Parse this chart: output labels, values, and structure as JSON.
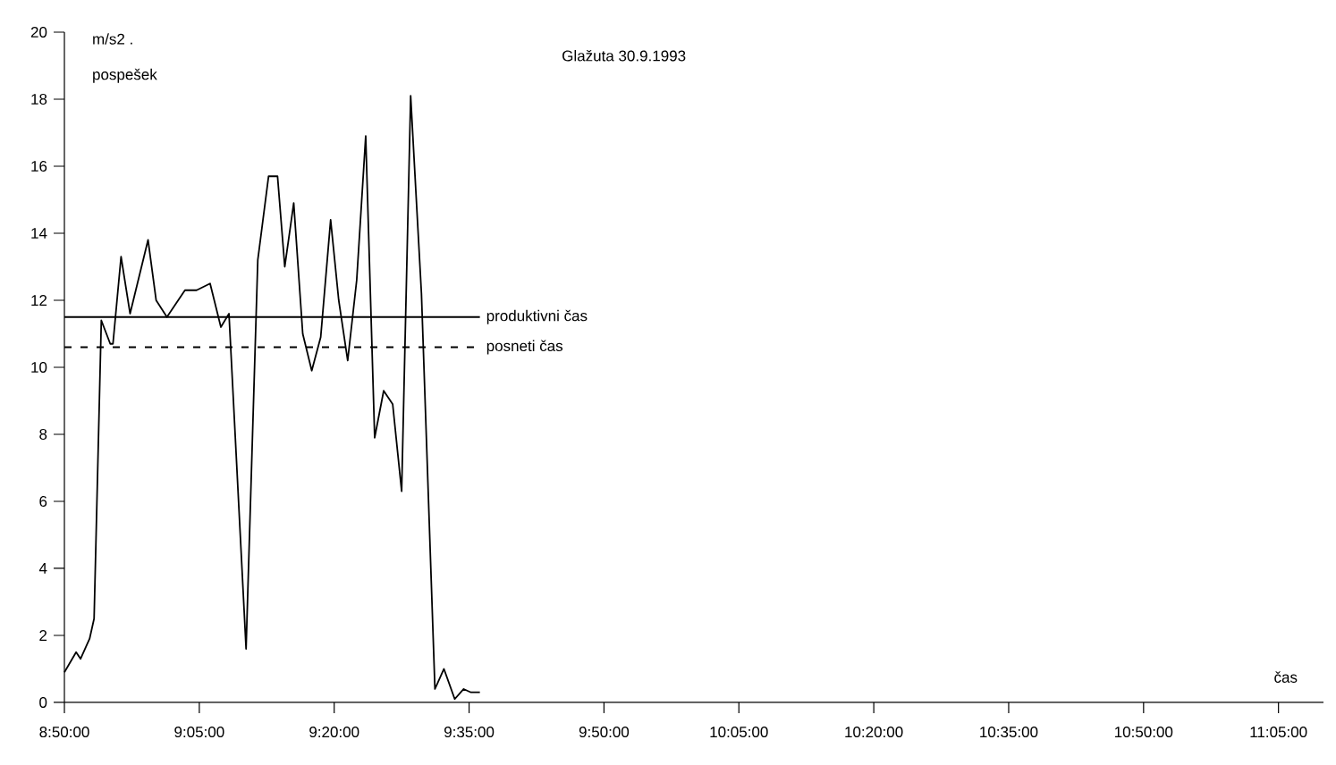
{
  "chart_data": {
    "type": "line",
    "title": "Glažuta 30.9.1993",
    "xlabel": "čas",
    "ylabel": "pospešek",
    "annotations": [
      "m/s2 ."
    ],
    "x": [
      8.8333,
      8.855,
      8.8633,
      8.88,
      8.8883,
      8.9017,
      8.9183,
      8.9233,
      8.9383,
      8.955,
      8.9883,
      9.0033,
      9.0233,
      9.0567,
      9.0783,
      9.1033,
      9.1233,
      9.1383,
      9.17,
      9.1917,
      9.2117,
      9.2283,
      9.2417,
      9.2583,
      9.275,
      9.2917,
      9.3083,
      9.3267,
      9.3417,
      9.3583,
      9.375,
      9.3917,
      9.4083,
      9.425,
      9.4417,
      9.4583,
      9.475,
      9.495,
      9.52,
      9.5367,
      9.5567,
      9.5733,
      9.5867,
      9.6033
    ],
    "series": [
      {
        "color": "#000000",
        "values": [
          0.9,
          1.5,
          1.3,
          1.9,
          2.5,
          11.4,
          10.7,
          10.7,
          13.3,
          11.6,
          13.8,
          12.0,
          11.5,
          12.3,
          12.3,
          12.5,
          11.2,
          11.6,
          1.6,
          13.2,
          15.7,
          15.7,
          13.0,
          14.9,
          11.0,
          9.9,
          10.9,
          14.4,
          12.0,
          10.2,
          12.6,
          16.9,
          7.9,
          9.3,
          8.9,
          6.3,
          18.1,
          12.2,
          0.4,
          1.0,
          0.1,
          0.4,
          0.3,
          0.3
        ]
      }
    ],
    "xlim": [
      8.8333,
      11.1667
    ],
    "xticks": [
      {
        "value": 8.8333,
        "label": "8:50:00"
      },
      {
        "value": 9.0833,
        "label": "9:05:00"
      },
      {
        "value": 9.3333,
        "label": "9:20:00"
      },
      {
        "value": 9.5833,
        "label": "9:35:00"
      },
      {
        "value": 9.8333,
        "label": "9:50:00"
      },
      {
        "value": 10.0833,
        "label": "10:05:00"
      },
      {
        "value": 10.3333,
        "label": "10:20:00"
      },
      {
        "value": 10.5833,
        "label": "10:35:00"
      },
      {
        "value": 10.8333,
        "label": "10:50:00"
      },
      {
        "value": 11.0833,
        "label": "11:05:00"
      }
    ],
    "ylim": [
      0,
      20
    ],
    "yticks": [
      0,
      2,
      4,
      6,
      8,
      10,
      12,
      14,
      16,
      18,
      20
    ],
    "ref_lines": [
      {
        "axis": "y",
        "value": 11.5,
        "label": "produktivni čas",
        "line_style": "solid",
        "color": "#000000"
      },
      {
        "axis": "y",
        "value": 10.6,
        "label": "posneti čas",
        "line_style": "dashed",
        "color": "#000000"
      }
    ],
    "grid": false,
    "marker": "none",
    "line_style": "solid"
  }
}
